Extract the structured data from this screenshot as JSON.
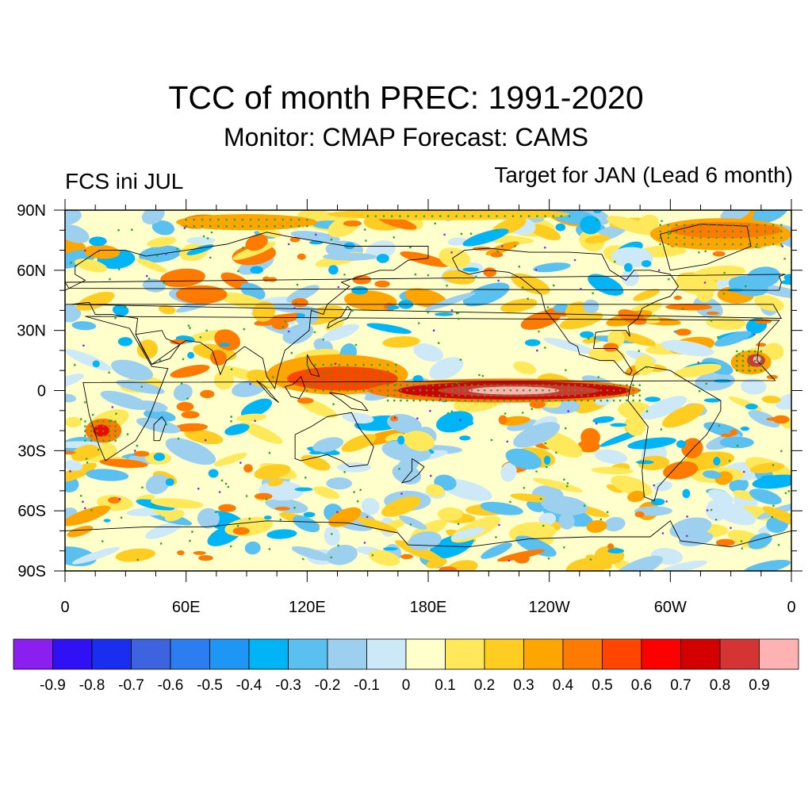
{
  "header": {
    "title": "TCC of month PREC: 1991-2020",
    "subtitle": "Monitor: CMAP   Forecast: CAMS",
    "left_label": "FCS ini JUL",
    "right_label": "Target for JAN (Lead 6 month)"
  },
  "map": {
    "lat_range": [
      -90,
      90
    ],
    "lon_range": [
      0,
      360
    ],
    "lat_ticks": [
      {
        "lat": 90,
        "label": "90N"
      },
      {
        "lat": 60,
        "label": "60N"
      },
      {
        "lat": 30,
        "label": "30N"
      },
      {
        "lat": 0,
        "label": "0"
      },
      {
        "lat": -30,
        "label": "30S"
      },
      {
        "lat": -60,
        "label": "60S"
      },
      {
        "lat": -90,
        "label": "90S"
      }
    ],
    "lon_ticks": [
      {
        "lon": 0,
        "label": "0"
      },
      {
        "lon": 60,
        "label": "60E"
      },
      {
        "lon": 120,
        "label": "120E"
      },
      {
        "lon": 180,
        "label": "180E"
      },
      {
        "lon": 240,
        "label": "120W"
      },
      {
        "lon": 300,
        "label": "60W"
      },
      {
        "lon": 360,
        "label": "0"
      }
    ]
  },
  "colorbar": {
    "colors": [
      "#8a1ff0",
      "#3010f5",
      "#1a2ef0",
      "#3e63e0",
      "#2c7ef0",
      "#1e96f5",
      "#00b4f5",
      "#5ac0f0",
      "#9dd0ef",
      "#cde8f7",
      "#ffffcc",
      "#ffe95a",
      "#ffcc22",
      "#ffa500",
      "#ff7a00",
      "#ff4500",
      "#ff0000",
      "#d40000",
      "#d43434",
      "#ffb2b2"
    ],
    "labels": [
      "-0.9",
      "-0.8",
      "-0.7",
      "-0.6",
      "-0.5",
      "-0.4",
      "-0.3",
      "-0.2",
      "-0.1",
      "0",
      "0.1",
      "0.2",
      "0.3",
      "0.4",
      "0.5",
      "0.6",
      "0.7",
      "0.8",
      "0.9"
    ]
  },
  "chart_data": {
    "type": "heatmap",
    "variable": "temporal correlation coefficient",
    "features": [
      {
        "region": "equatorial central-east Pacific",
        "lat_range": [
          -5,
          5
        ],
        "lon_range": [
          170,
          275
        ],
        "tcc_max": 0.9
      },
      {
        "region": "western tropical Pacific / Maritime Continent",
        "lat_range": [
          -5,
          15
        ],
        "lon_range": [
          110,
          165
        ],
        "tcc_max": 0.6
      },
      {
        "region": "southern Africa",
        "lat_range": [
          -25,
          -15
        ],
        "lon_range": [
          10,
          25
        ],
        "tcc_max": 0.6
      },
      {
        "region": "tropical Atlantic near West Africa",
        "lat_range": [
          10,
          20
        ],
        "lon_range": [
          340,
          348
        ],
        "tcc_max": 0.9
      },
      {
        "region": "Arctic near Greenland",
        "lat_range": [
          70,
          85
        ],
        "lon_range": [
          300,
          360
        ],
        "tcc_max": 0.6
      }
    ]
  }
}
